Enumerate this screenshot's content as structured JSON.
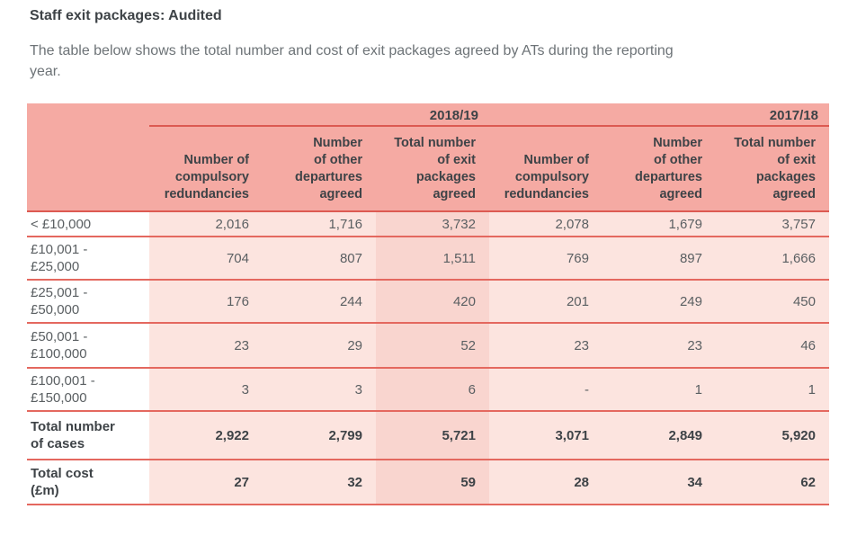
{
  "page": {
    "title": "Staff exit packages: Audited",
    "intro": "The table below shows the total number and cost of exit packages agreed by ATs during the reporting\nyear."
  },
  "table": {
    "year_groups": [
      {
        "label": "2018/19"
      },
      {
        "label": "2017/18"
      }
    ],
    "column_headers": [
      "Number of\ncompulsory\nredundancies",
      "Number\nof other\ndepartures\nagreed",
      "Total number\nof exit\npackages\nagreed",
      "Number of\ncompulsory\nredundancies",
      "Number\nof other\ndepartures\nagreed",
      "Total number\nof exit\npackages\nagreed"
    ],
    "rows": [
      {
        "label": "< £10,000",
        "values": [
          "2,016",
          "1,716",
          "3,732",
          "2,078",
          "1,679",
          "3,757"
        ]
      },
      {
        "label": "£10,001 -\n£25,000",
        "values": [
          "704",
          "807",
          "1,511",
          "769",
          "897",
          "1,666"
        ]
      },
      {
        "label": "£25,001 -\n£50,000",
        "values": [
          "176",
          "244",
          "420",
          "201",
          "249",
          "450"
        ]
      },
      {
        "label": "£50,001 -\n£100,000",
        "values": [
          "23",
          "29",
          "52",
          "23",
          "23",
          "46"
        ]
      },
      {
        "label": "£100,001 -\n£150,000",
        "values": [
          "3",
          "3",
          "6",
          "-",
          "1",
          "1"
        ]
      }
    ],
    "total_rows": [
      {
        "label": "Total number\nof cases",
        "values": [
          "2,922",
          "2,799",
          "5,721",
          "3,071",
          "2,849",
          "5,920"
        ]
      },
      {
        "label": "Total cost\n(£m)",
        "values": [
          "27",
          "32",
          "59",
          "28",
          "34",
          "62"
        ]
      }
    ]
  },
  "colors": {
    "band": "#f5aaa3",
    "cell": "#fce4df",
    "cell-highlight": "#f9d5cf",
    "line-band": "#dc5a52",
    "line-row": "#e4685f",
    "ink-dark": "#3e4347",
    "ink-gray": "#5a5f62",
    "ink-intro": "#6d7377"
  }
}
